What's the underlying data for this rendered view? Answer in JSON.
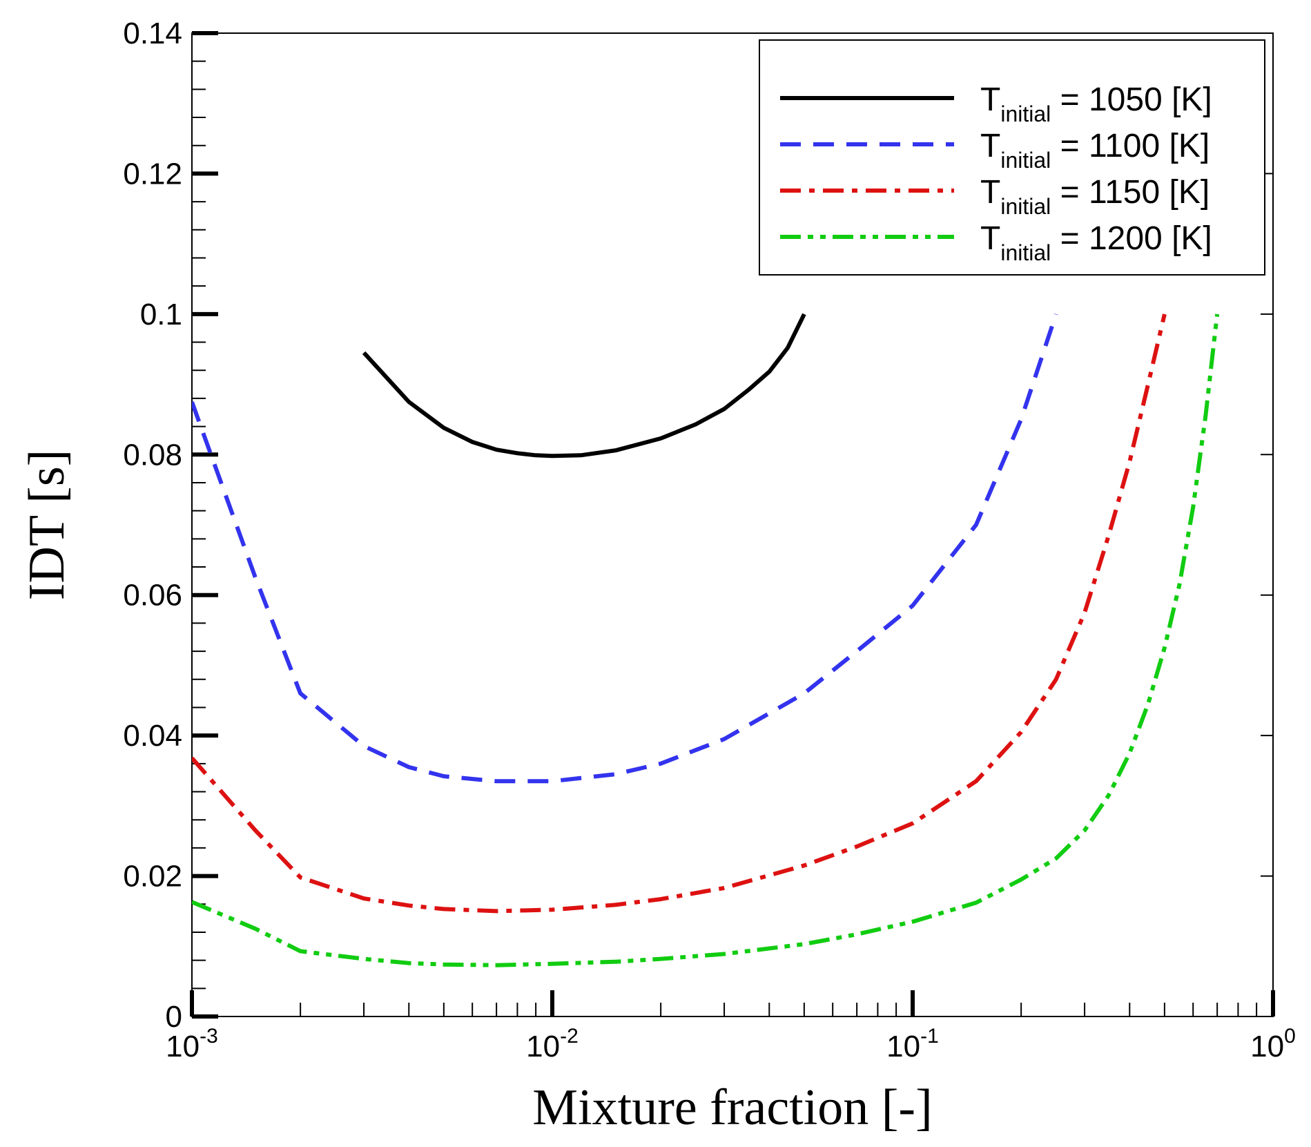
{
  "chart_data": {
    "type": "line",
    "xlabel": "Mixture fraction [-]",
    "ylabel": "IDT [s]",
    "x_scale": "log",
    "xlim": [
      0.001,
      1
    ],
    "ylim": [
      0,
      0.14
    ],
    "x_tick_labels": [
      {
        "base": "10",
        "exp": "-3",
        "value": 0.001
      },
      {
        "base": "10",
        "exp": "-2",
        "value": 0.01
      },
      {
        "base": "10",
        "exp": "-1",
        "value": 0.1
      },
      {
        "base": "10",
        "exp": "0",
        "value": 1
      }
    ],
    "y_tick_labels": [
      {
        "label": "0",
        "value": 0
      },
      {
        "label": "0.02",
        "value": 0.02
      },
      {
        "label": "0.04",
        "value": 0.04
      },
      {
        "label": "0.06",
        "value": 0.06
      },
      {
        "label": "0.08",
        "value": 0.08
      },
      {
        "label": "0.1",
        "value": 0.1
      },
      {
        "label": "0.12",
        "value": 0.12
      },
      {
        "label": "0.14",
        "value": 0.14
      }
    ],
    "grid": false,
    "legend_position": "top-right",
    "series": [
      {
        "legend_main": "T",
        "legend_sub": "initial",
        "legend_rest": " = 1050 [K]",
        "color": "#000000",
        "dash": "solid",
        "points": [
          [
            0.003,
            0.0945
          ],
          [
            0.004,
            0.0875
          ],
          [
            0.005,
            0.0838
          ],
          [
            0.006,
            0.0818
          ],
          [
            0.007,
            0.0807
          ],
          [
            0.008,
            0.0802
          ],
          [
            0.009,
            0.0799
          ],
          [
            0.01,
            0.0798
          ],
          [
            0.012,
            0.0799
          ],
          [
            0.015,
            0.0806
          ],
          [
            0.02,
            0.0823
          ],
          [
            0.025,
            0.0843
          ],
          [
            0.03,
            0.0865
          ],
          [
            0.035,
            0.0892
          ],
          [
            0.04,
            0.0918
          ],
          [
            0.045,
            0.0952
          ],
          [
            0.05,
            0.1
          ]
        ]
      },
      {
        "legend_main": "T",
        "legend_sub": "initial",
        "legend_rest": " = 1100 [K]",
        "color": "#3333ee",
        "dash": "dashed",
        "points": [
          [
            0.001,
            0.0875
          ],
          [
            0.0015,
            0.0625
          ],
          [
            0.002,
            0.046
          ],
          [
            0.003,
            0.0385
          ],
          [
            0.004,
            0.0355
          ],
          [
            0.005,
            0.0342
          ],
          [
            0.007,
            0.0335
          ],
          [
            0.01,
            0.0335
          ],
          [
            0.015,
            0.0345
          ],
          [
            0.02,
            0.036
          ],
          [
            0.03,
            0.0395
          ],
          [
            0.05,
            0.046
          ],
          [
            0.07,
            0.052
          ],
          [
            0.1,
            0.0585
          ],
          [
            0.15,
            0.07
          ],
          [
            0.2,
            0.085
          ],
          [
            0.25,
            0.1
          ]
        ]
      },
      {
        "legend_main": "T",
        "legend_sub": "initial",
        "legend_rest": " = 1150 [K]",
        "color": "#dd1111",
        "dash": "dashdot",
        "points": [
          [
            0.001,
            0.0368
          ],
          [
            0.0015,
            0.0265
          ],
          [
            0.002,
            0.0198
          ],
          [
            0.003,
            0.0168
          ],
          [
            0.004,
            0.0158
          ],
          [
            0.005,
            0.0153
          ],
          [
            0.007,
            0.015
          ],
          [
            0.01,
            0.0152
          ],
          [
            0.015,
            0.0159
          ],
          [
            0.02,
            0.0167
          ],
          [
            0.03,
            0.0183
          ],
          [
            0.05,
            0.0215
          ],
          [
            0.07,
            0.0242
          ],
          [
            0.1,
            0.0275
          ],
          [
            0.15,
            0.0335
          ],
          [
            0.2,
            0.0405
          ],
          [
            0.25,
            0.048
          ],
          [
            0.3,
            0.0575
          ],
          [
            0.35,
            0.0685
          ],
          [
            0.4,
            0.079
          ],
          [
            0.45,
            0.09
          ],
          [
            0.5,
            0.1
          ]
        ]
      },
      {
        "legend_main": "T",
        "legend_sub": "initial",
        "legend_rest": " = 1200 [K]",
        "color": "#11cc11",
        "dash": "dashdotdot",
        "points": [
          [
            0.001,
            0.0163
          ],
          [
            0.0015,
            0.0125
          ],
          [
            0.002,
            0.0093
          ],
          [
            0.003,
            0.0082
          ],
          [
            0.004,
            0.0076
          ],
          [
            0.005,
            0.0074
          ],
          [
            0.007,
            0.0073
          ],
          [
            0.01,
            0.0075
          ],
          [
            0.015,
            0.0078
          ],
          [
            0.02,
            0.0082
          ],
          [
            0.03,
            0.0089
          ],
          [
            0.05,
            0.0103
          ],
          [
            0.07,
            0.0117
          ],
          [
            0.1,
            0.0135
          ],
          [
            0.15,
            0.0162
          ],
          [
            0.2,
            0.0195
          ],
          [
            0.25,
            0.0225
          ],
          [
            0.3,
            0.0265
          ],
          [
            0.35,
            0.0315
          ],
          [
            0.4,
            0.0375
          ],
          [
            0.45,
            0.0445
          ],
          [
            0.5,
            0.0525
          ],
          [
            0.55,
            0.0615
          ],
          [
            0.6,
            0.0725
          ],
          [
            0.65,
            0.0855
          ],
          [
            0.7,
            0.1
          ]
        ]
      }
    ]
  }
}
